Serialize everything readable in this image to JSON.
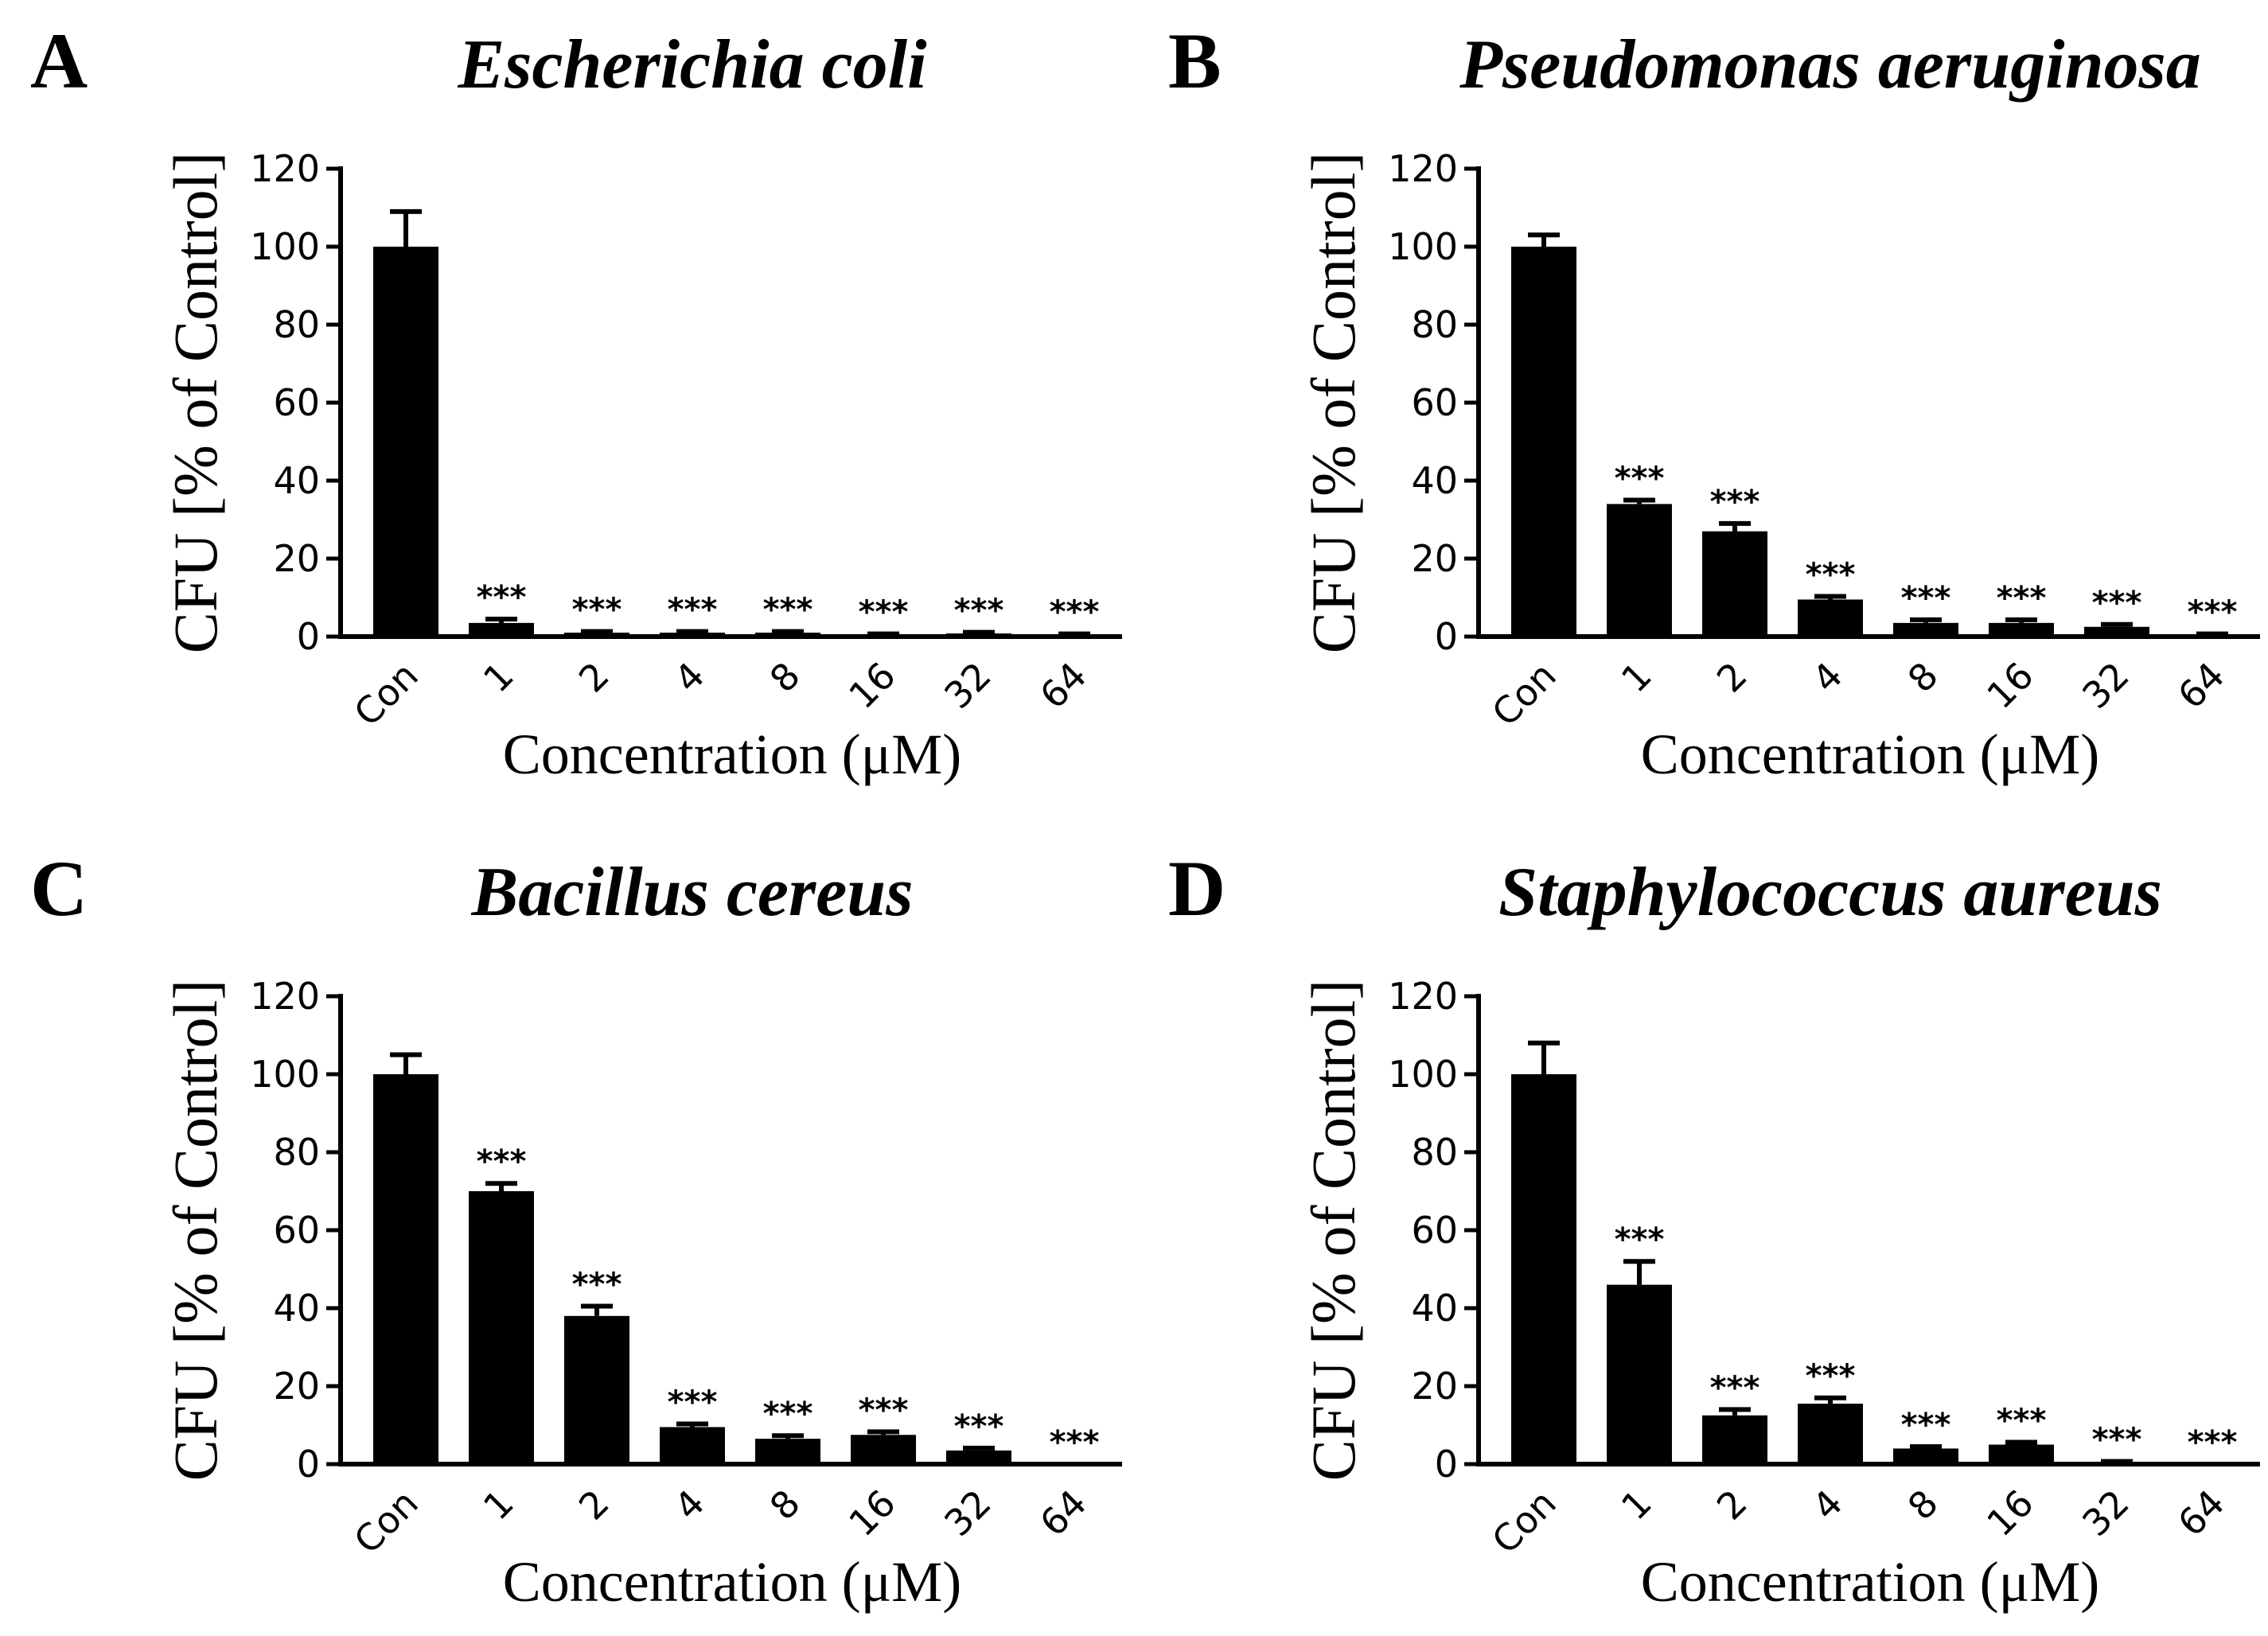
{
  "chart_data": [
    {
      "type": "bar",
      "panel": "A",
      "title": "Escherichia coli",
      "xlabel": "Concentration (μM)",
      "ylabel": "CFU [% of Control]",
      "categories": [
        "Con",
        "1",
        "2",
        "4",
        "8",
        "16",
        "32",
        "64"
      ],
      "values": [
        100,
        3.5,
        1,
        1,
        1,
        0.5,
        0.8,
        0.5
      ],
      "errors": [
        9,
        1,
        0.3,
        0.3,
        0.3,
        0.2,
        0.3,
        0.2
      ],
      "significance": [
        "",
        "***",
        "***",
        "***",
        "***",
        "***",
        "***",
        "***"
      ],
      "ylim": [
        0,
        120
      ],
      "yticks": [
        0,
        20,
        40,
        60,
        80,
        100,
        120
      ]
    },
    {
      "type": "bar",
      "panel": "B",
      "title": "Pseudomonas aeruginosa",
      "xlabel": "Concentration (μM)",
      "ylabel": "CFU [% of Control]",
      "categories": [
        "Con",
        "1",
        "2",
        "4",
        "8",
        "16",
        "32",
        "64"
      ],
      "values": [
        100,
        34,
        27,
        9.5,
        3.5,
        3.5,
        2.5,
        0.5
      ],
      "errors": [
        3,
        1,
        2,
        0.8,
        0.8,
        0.8,
        0.6,
        0.2
      ],
      "significance": [
        "",
        "***",
        "***",
        "***",
        "***",
        "***",
        "***",
        "***"
      ],
      "ylim": [
        0,
        120
      ],
      "yticks": [
        0,
        20,
        40,
        60,
        80,
        100,
        120
      ]
    },
    {
      "type": "bar",
      "panel": "C",
      "title": "Bacillus cereus",
      "xlabel": "Concentration (μM)",
      "ylabel": "CFU [% of Control]",
      "categories": [
        "Con",
        "1",
        "2",
        "4",
        "8",
        "16",
        "32",
        "64"
      ],
      "values": [
        100,
        70,
        38,
        9.5,
        6.5,
        7.5,
        3.5,
        0
      ],
      "errors": [
        5,
        2,
        2.5,
        0.8,
        0.8,
        0.8,
        0.6,
        0
      ],
      "significance": [
        "",
        "***",
        "***",
        "***",
        "***",
        "***",
        "***",
        "***"
      ],
      "ylim": [
        0,
        120
      ],
      "yticks": [
        0,
        20,
        40,
        60,
        80,
        100,
        120
      ]
    },
    {
      "type": "bar",
      "panel": "D",
      "title": "Staphylococcus aureus",
      "xlabel": "Concentration (μM)",
      "ylabel": "CFU [% of Control]",
      "categories": [
        "Con",
        "1",
        "2",
        "4",
        "8",
        "16",
        "32",
        "64"
      ],
      "values": [
        100,
        46,
        12.5,
        15.5,
        4,
        5,
        0.5,
        0
      ],
      "errors": [
        8,
        6,
        1.5,
        1.5,
        0.5,
        0.6,
        0.2,
        0
      ],
      "significance": [
        "",
        "***",
        "***",
        "***",
        "***",
        "***",
        "***",
        "***"
      ],
      "ylim": [
        0,
        120
      ],
      "yticks": [
        0,
        20,
        40,
        60,
        80,
        100,
        120
      ]
    }
  ]
}
